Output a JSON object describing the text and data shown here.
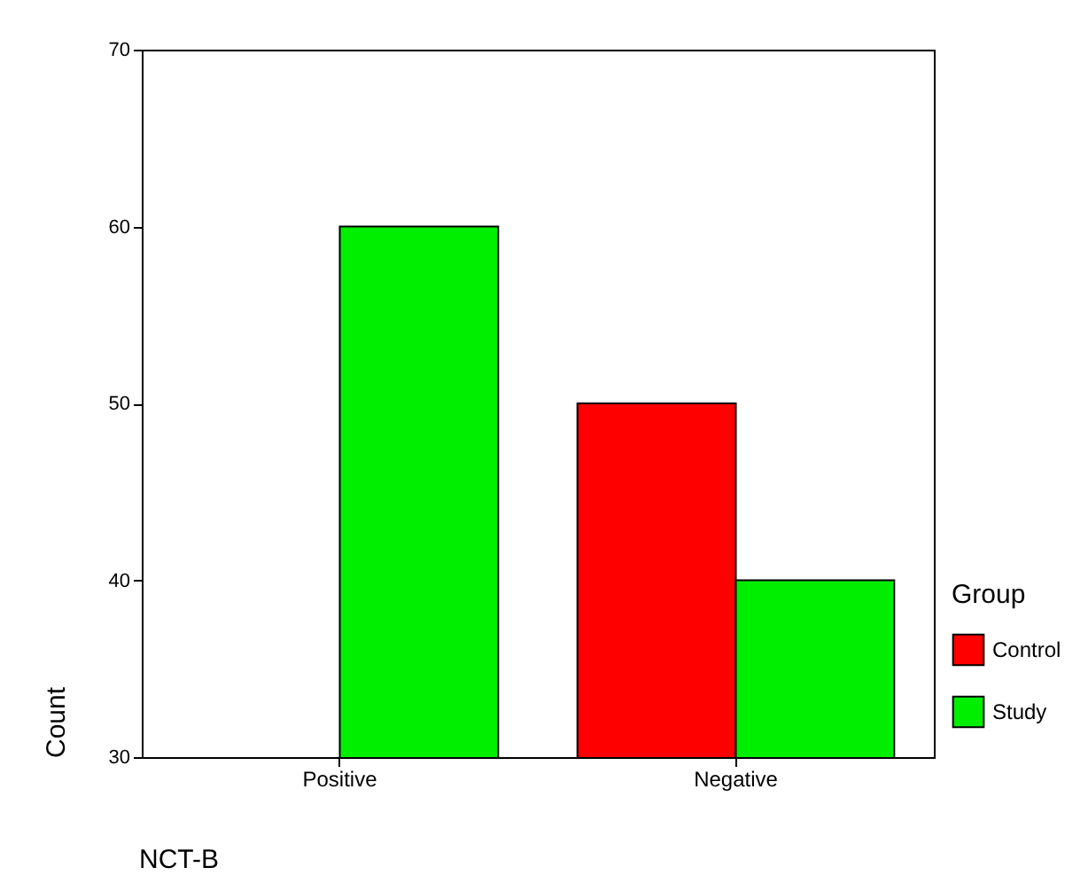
{
  "chart_data": {
    "type": "bar",
    "xlabel": "NCT-B",
    "ylabel": "Count",
    "legend_title": "Group",
    "categories": [
      "Positive",
      "Negative"
    ],
    "series": [
      {
        "name": "Control",
        "color": "#ff0000",
        "values": [
          null,
          50
        ]
      },
      {
        "name": "Study",
        "color": "#00ee00",
        "values": [
          60,
          40
        ]
      }
    ],
    "ylim": [
      30,
      70
    ],
    "yticks": [
      30,
      40,
      50,
      60,
      70
    ],
    "grid": false,
    "legend": "right"
  }
}
